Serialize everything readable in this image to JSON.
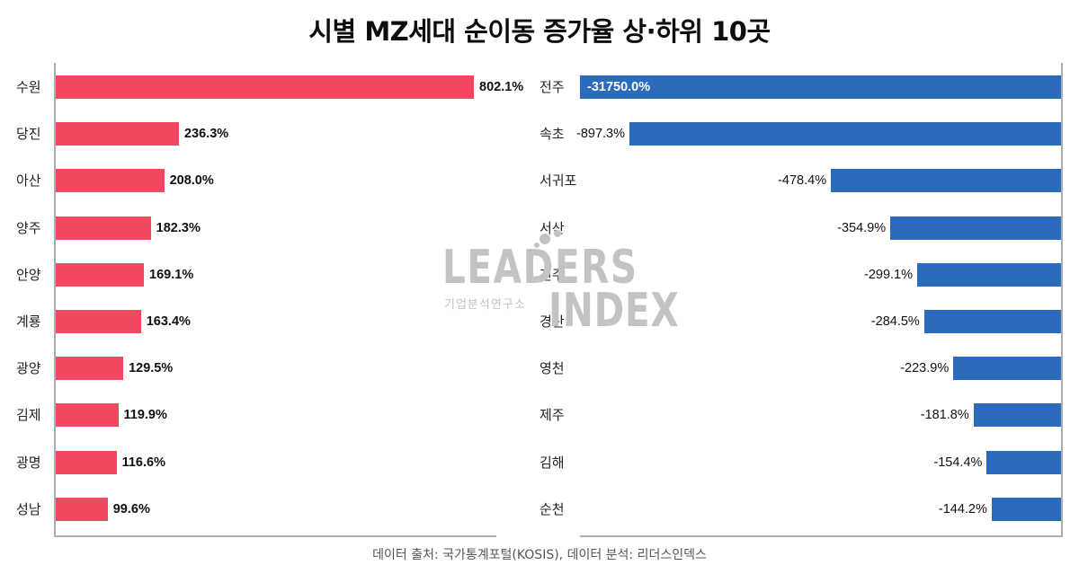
{
  "title": "시별 MZ세대 순이동 증가율 상·하위 10곳",
  "source": "데이터 출처: 국가통계포털(KOSIS), 데이터 분석: 리더스인덱스",
  "watermark": {
    "brand_top": "LEADERS",
    "brand_bottom": "INDEX",
    "subtitle": "기업분석연구소"
  },
  "colors": {
    "top_bar": "#f0485e",
    "bottom_bar": "#2a6cbb",
    "axis": "#a9adb3"
  },
  "top10": {
    "labels": [
      "수원",
      "당진",
      "아산",
      "양주",
      "안양",
      "계룡",
      "광양",
      "김제",
      "광명",
      "성남"
    ],
    "value_labels": [
      "802.1%",
      "236.3%",
      "208.0%",
      "182.3%",
      "169.1%",
      "163.4%",
      "129.5%",
      "119.9%",
      "116.6%",
      "99.6%"
    ]
  },
  "bottom10": {
    "labels": [
      "전주",
      "속초",
      "서귀포",
      "서산",
      "진주",
      "경산",
      "영천",
      "제주",
      "김해",
      "순천"
    ],
    "value_labels": [
      "-31750.0%",
      "-897.3%",
      "-478.4%",
      "-354.9%",
      "-299.1%",
      "-284.5%",
      "-223.9%",
      "-181.8%",
      "-154.4%",
      "-144.2%"
    ]
  },
  "chart_data": [
    {
      "type": "bar",
      "orientation": "horizontal",
      "title": "시별 MZ세대 순이동 증가율 상·하위 10곳 — 상위 10곳",
      "categories": [
        "수원",
        "당진",
        "아산",
        "양주",
        "안양",
        "계룡",
        "광양",
        "김제",
        "광명",
        "성남"
      ],
      "values": [
        802.1,
        236.3,
        208.0,
        182.3,
        169.1,
        163.4,
        129.5,
        119.9,
        116.6,
        99.6
      ],
      "unit": "%",
      "xlabel": "",
      "ylabel": "",
      "xlim": [
        0,
        802.1
      ],
      "grid": false,
      "legend": null,
      "color": "#f0485e",
      "data_labels": true
    },
    {
      "type": "bar",
      "orientation": "horizontal",
      "title": "시별 MZ세대 순이동 증가율 상·하위 10곳 — 하위 10곳",
      "categories": [
        "전주",
        "속초",
        "서귀포",
        "서산",
        "진주",
        "경산",
        "영천",
        "제주",
        "김해",
        "순천"
      ],
      "values": [
        -31750.0,
        -897.3,
        -478.4,
        -354.9,
        -299.1,
        -284.5,
        -223.9,
        -181.8,
        -154.4,
        -144.2
      ],
      "unit": "%",
      "xlabel": "",
      "ylabel": "",
      "xlim": [
        -1000,
        0
      ],
      "axis_clipped_note_visible": false,
      "grid": false,
      "legend": null,
      "color": "#2a6cbb",
      "data_labels": true
    }
  ]
}
